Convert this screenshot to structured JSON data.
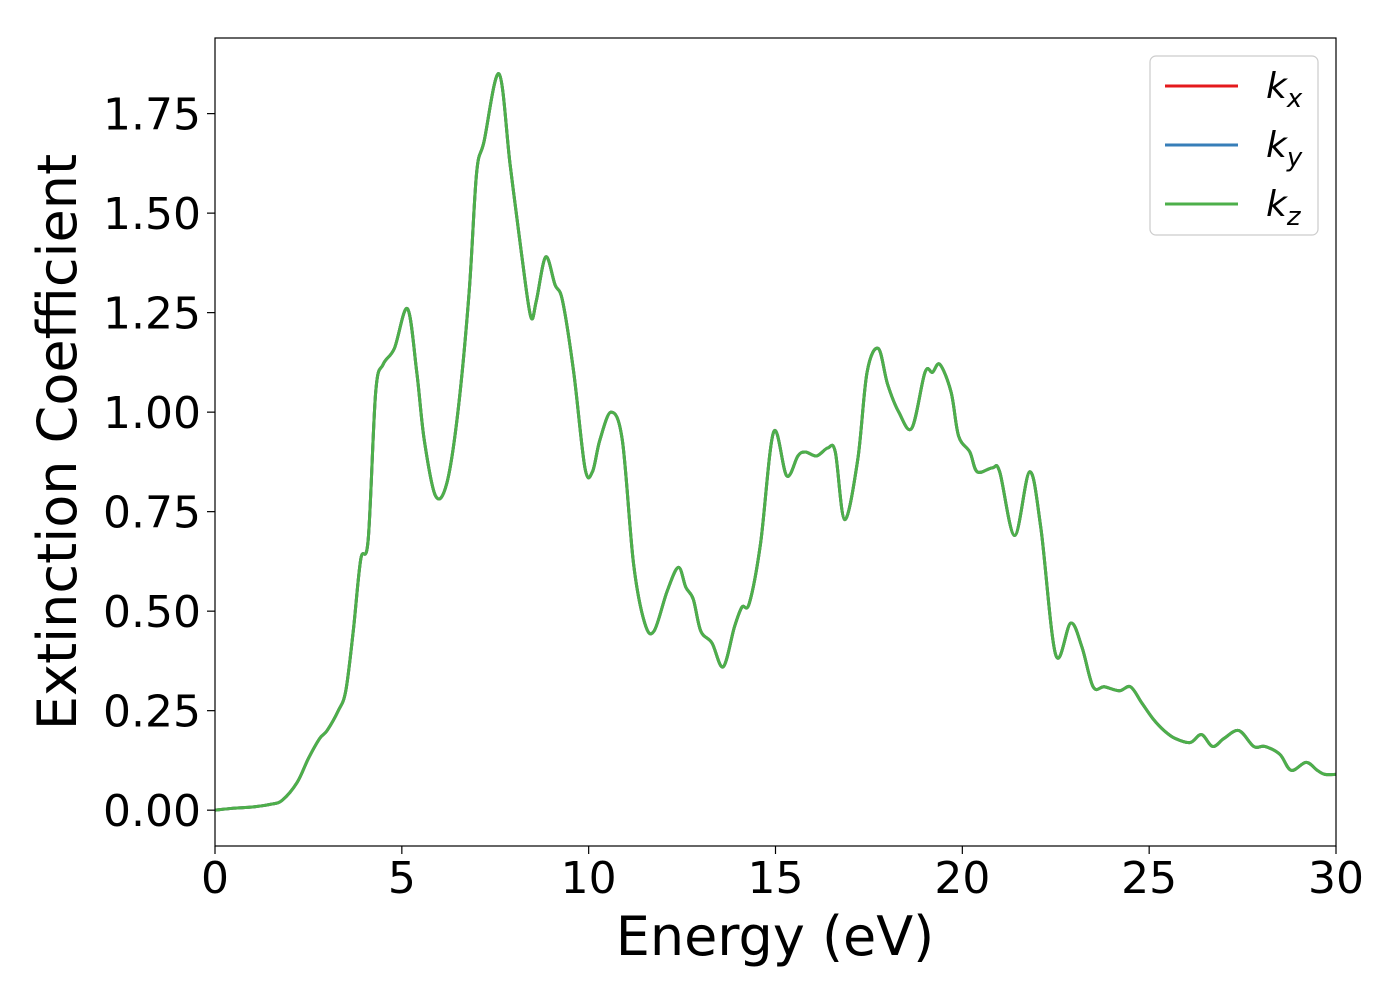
{
  "chart_data": {
    "type": "line",
    "title": "",
    "xlabel": "Energy (eV)",
    "ylabel": "Extinction Coefficient",
    "xlim": [
      0,
      30
    ],
    "ylim": [
      -0.09,
      1.94
    ],
    "x_ticks": [
      0,
      5,
      10,
      15,
      20,
      25,
      30
    ],
    "x_tick_labels": [
      "0",
      "5",
      "10",
      "15",
      "20",
      "25",
      "30"
    ],
    "y_ticks": [
      0,
      0.25,
      0.5,
      0.75,
      1.0,
      1.25,
      1.5,
      1.75
    ],
    "y_tick_labels": [
      "0.00",
      "0.25",
      "0.50",
      "0.75",
      "1.00",
      "1.25",
      "1.50",
      "1.75"
    ],
    "grid": false,
    "legend_position": "top-right",
    "x": [
      0,
      0.5,
      1.0,
      1.5,
      1.8,
      2.2,
      2.5,
      2.8,
      3.0,
      3.3,
      3.5,
      3.7,
      3.9,
      4.1,
      4.3,
      4.5,
      4.8,
      5.15,
      5.4,
      5.6,
      5.9,
      6.2,
      6.5,
      6.8,
      7.0,
      7.2,
      7.6,
      7.9,
      8.2,
      8.45,
      8.6,
      8.85,
      9.1,
      9.3,
      9.6,
      9.9,
      10.1,
      10.3,
      10.6,
      10.9,
      11.2,
      11.5,
      11.75,
      12.1,
      12.4,
      12.6,
      12.8,
      13.0,
      13.3,
      13.6,
      13.9,
      14.1,
      14.3,
      14.6,
      14.95,
      15.3,
      15.6,
      15.8,
      16.1,
      16.4,
      16.6,
      16.85,
      17.2,
      17.45,
      17.75,
      18.0,
      18.3,
      18.65,
      19.0,
      19.2,
      19.4,
      19.7,
      19.9,
      20.2,
      20.4,
      20.8,
      21.0,
      21.4,
      21.8,
      22.1,
      22.5,
      22.9,
      23.2,
      23.5,
      23.8,
      24.2,
      24.5,
      24.8,
      25.1,
      25.4,
      25.7,
      26.1,
      26.4,
      26.7,
      27.0,
      27.4,
      27.8,
      28.1,
      28.5,
      28.8,
      29.2,
      29.5,
      29.7,
      30.0
    ],
    "series": [
      {
        "name": "k_x",
        "color": "#e41a1c",
        "values": [
          0.0,
          0.005,
          0.008,
          0.015,
          0.025,
          0.07,
          0.13,
          0.18,
          0.2,
          0.25,
          0.3,
          0.45,
          0.63,
          0.68,
          1.05,
          1.12,
          1.16,
          1.26,
          1.1,
          0.93,
          0.79,
          0.82,
          1.0,
          1.3,
          1.6,
          1.68,
          1.85,
          1.62,
          1.4,
          1.24,
          1.28,
          1.39,
          1.32,
          1.28,
          1.1,
          0.86,
          0.85,
          0.93,
          1.0,
          0.93,
          0.62,
          0.47,
          0.45,
          0.55,
          0.61,
          0.56,
          0.53,
          0.45,
          0.42,
          0.36,
          0.46,
          0.51,
          0.52,
          0.67,
          0.95,
          0.84,
          0.89,
          0.9,
          0.89,
          0.91,
          0.9,
          0.73,
          0.88,
          1.1,
          1.16,
          1.07,
          1.0,
          0.96,
          1.1,
          1.1,
          1.12,
          1.05,
          0.94,
          0.9,
          0.85,
          0.86,
          0.85,
          0.69,
          0.85,
          0.71,
          0.39,
          0.47,
          0.41,
          0.31,
          0.31,
          0.3,
          0.31,
          0.27,
          0.23,
          0.2,
          0.18,
          0.17,
          0.19,
          0.16,
          0.18,
          0.2,
          0.16,
          0.16,
          0.14,
          0.1,
          0.12,
          0.1,
          0.09,
          0.09
        ]
      },
      {
        "name": "k_y",
        "color": "#377eb8",
        "values": [
          0.0,
          0.005,
          0.008,
          0.015,
          0.025,
          0.07,
          0.13,
          0.18,
          0.2,
          0.25,
          0.3,
          0.45,
          0.63,
          0.68,
          1.05,
          1.12,
          1.16,
          1.26,
          1.1,
          0.93,
          0.79,
          0.82,
          1.0,
          1.3,
          1.6,
          1.68,
          1.85,
          1.62,
          1.4,
          1.24,
          1.28,
          1.39,
          1.32,
          1.28,
          1.1,
          0.86,
          0.85,
          0.93,
          1.0,
          0.93,
          0.62,
          0.47,
          0.45,
          0.55,
          0.61,
          0.56,
          0.53,
          0.45,
          0.42,
          0.36,
          0.46,
          0.51,
          0.52,
          0.67,
          0.95,
          0.84,
          0.89,
          0.9,
          0.89,
          0.91,
          0.9,
          0.73,
          0.88,
          1.1,
          1.16,
          1.07,
          1.0,
          0.96,
          1.1,
          1.1,
          1.12,
          1.05,
          0.94,
          0.9,
          0.85,
          0.86,
          0.85,
          0.69,
          0.85,
          0.71,
          0.39,
          0.47,
          0.41,
          0.31,
          0.31,
          0.3,
          0.31,
          0.27,
          0.23,
          0.2,
          0.18,
          0.17,
          0.19,
          0.16,
          0.18,
          0.2,
          0.16,
          0.16,
          0.14,
          0.1,
          0.12,
          0.1,
          0.09,
          0.09
        ]
      },
      {
        "name": "k_z",
        "color": "#4daf4a",
        "values": [
          0.0,
          0.005,
          0.008,
          0.015,
          0.025,
          0.07,
          0.13,
          0.18,
          0.2,
          0.25,
          0.3,
          0.45,
          0.63,
          0.68,
          1.05,
          1.12,
          1.16,
          1.26,
          1.1,
          0.93,
          0.79,
          0.82,
          1.0,
          1.3,
          1.6,
          1.68,
          1.85,
          1.62,
          1.4,
          1.24,
          1.28,
          1.39,
          1.32,
          1.28,
          1.1,
          0.86,
          0.85,
          0.93,
          1.0,
          0.93,
          0.62,
          0.47,
          0.45,
          0.55,
          0.61,
          0.56,
          0.53,
          0.45,
          0.42,
          0.36,
          0.46,
          0.51,
          0.52,
          0.67,
          0.95,
          0.84,
          0.89,
          0.9,
          0.89,
          0.91,
          0.9,
          0.73,
          0.88,
          1.1,
          1.16,
          1.07,
          1.0,
          0.96,
          1.1,
          1.1,
          1.12,
          1.05,
          0.94,
          0.9,
          0.85,
          0.86,
          0.85,
          0.69,
          0.85,
          0.71,
          0.39,
          0.47,
          0.41,
          0.31,
          0.31,
          0.3,
          0.31,
          0.27,
          0.23,
          0.2,
          0.18,
          0.17,
          0.19,
          0.16,
          0.18,
          0.2,
          0.16,
          0.16,
          0.14,
          0.1,
          0.12,
          0.1,
          0.09,
          0.09
        ]
      }
    ],
    "legend": [
      {
        "base": "k",
        "sub": "x",
        "color": "#e41a1c"
      },
      {
        "base": "k",
        "sub": "y",
        "color": "#377eb8"
      },
      {
        "base": "k",
        "sub": "z",
        "color": "#4daf4a"
      }
    ]
  }
}
